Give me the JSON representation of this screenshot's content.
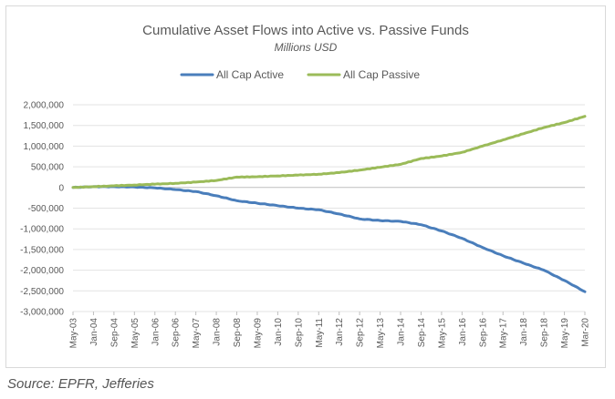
{
  "source_note": "Source: EPFR, Jefferies",
  "chart_data": {
    "type": "line",
    "title": "Cumulative Asset Flows into Active vs. Passive Funds",
    "subtitle": "Millions USD",
    "xlabel": "",
    "ylabel": "",
    "ylim": [
      -3000000,
      2000000
    ],
    "yticks": [
      2000000,
      1500000,
      1000000,
      500000,
      0,
      -500000,
      -1000000,
      -1500000,
      -2000000,
      -2500000,
      -3000000
    ],
    "ytick_labels": [
      "2,000,000",
      "1,500,000",
      "1,000,000",
      "500,000",
      "0",
      "-500,000",
      "-1,000,000",
      "-1,500,000",
      "-2,000,000",
      "-2,500,000",
      "-3,000,000"
    ],
    "x": [
      "May-03",
      "Jan-04",
      "Sep-04",
      "May-05",
      "Jan-06",
      "Sep-06",
      "May-07",
      "Jan-08",
      "Sep-08",
      "May-09",
      "Jan-10",
      "Sep-10",
      "May-11",
      "Jan-12",
      "Sep-12",
      "May-13",
      "Jan-14",
      "Sep-14",
      "May-15",
      "Jan-16",
      "Sep-16",
      "May-17",
      "Jan-18",
      "Sep-18",
      "May-19",
      "Mar-20"
    ],
    "legend_position": "top",
    "grid": true,
    "series": [
      {
        "name": "All Cap Active",
        "color": "#4a7ebb",
        "values": [
          0,
          20000,
          20000,
          10000,
          -10000,
          -50000,
          -100000,
          -200000,
          -320000,
          -380000,
          -440000,
          -500000,
          -540000,
          -640000,
          -760000,
          -800000,
          -820000,
          -900000,
          -1050000,
          -1230000,
          -1450000,
          -1650000,
          -1830000,
          -2000000,
          -2250000,
          -2520000
        ]
      },
      {
        "name": "All Cap Passive",
        "color": "#9bbb59",
        "values": [
          0,
          20000,
          40000,
          60000,
          80000,
          100000,
          130000,
          170000,
          250000,
          260000,
          280000,
          300000,
          320000,
          360000,
          420000,
          490000,
          560000,
          700000,
          760000,
          850000,
          1000000,
          1150000,
          1300000,
          1450000,
          1570000,
          1720000
        ]
      }
    ]
  }
}
